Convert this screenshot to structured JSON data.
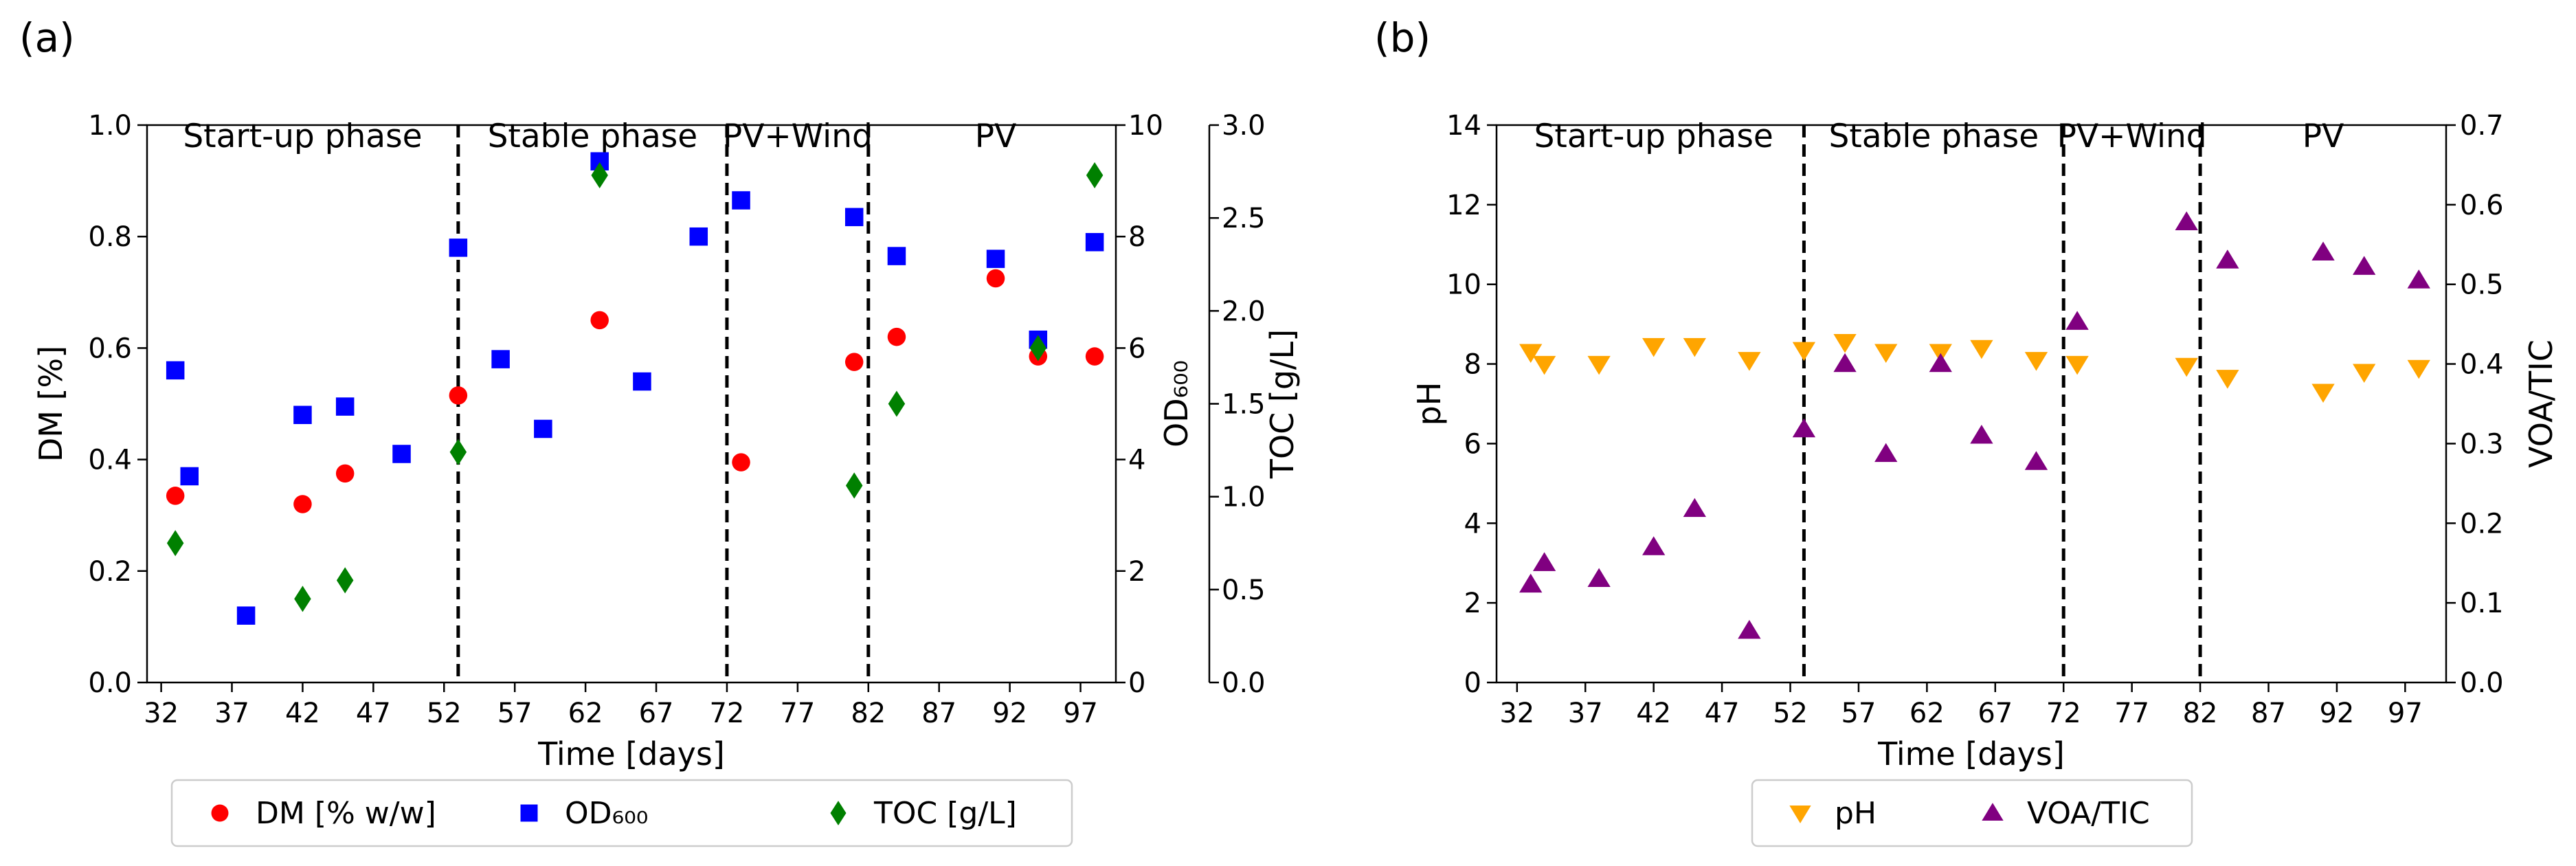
{
  "chart_data": [
    {
      "panel_label": "(a)",
      "type": "scatter",
      "xlabel": "Time [days]",
      "xlim": [
        31,
        99.5
      ],
      "xticks": [
        32,
        37,
        42,
        47,
        52,
        57,
        62,
        67,
        72,
        77,
        82,
        87,
        92,
        97
      ],
      "xtick_labels": [
        "32",
        "37",
        "42",
        "47",
        "52",
        "57",
        "62",
        "67",
        "72",
        "77",
        "82",
        "87",
        "92",
        "97"
      ],
      "phase_boundaries": [
        53,
        72,
        82
      ],
      "phases": [
        {
          "label": "Start-up phase",
          "x_center": 42
        },
        {
          "label": "Stable phase",
          "x_center": 62.5
        },
        {
          "label": "PV+Wind",
          "x_center": 77
        },
        {
          "label": "PV",
          "x_center": 91
        }
      ],
      "axes": [
        {
          "id": "dm",
          "label": "DM [%]",
          "side": "left",
          "ylim": [
            0,
            1.0
          ],
          "ticks": [
            0,
            0.2,
            0.4,
            0.6,
            0.8,
            1.0
          ],
          "tick_labels": [
            "0.0",
            "0.2",
            "0.4",
            "0.6",
            "0.8",
            "1.0"
          ]
        },
        {
          "id": "od",
          "label": "OD₆₀₀",
          "side": "right",
          "ylim": [
            0,
            10
          ],
          "ticks": [
            0,
            2,
            4,
            6,
            8,
            10
          ],
          "tick_labels": [
            "0",
            "2",
            "4",
            "6",
            "8",
            "10"
          ]
        },
        {
          "id": "toc",
          "label": "TOC [g/L]",
          "side": "right-outer",
          "ylim": [
            0,
            3.0
          ],
          "ticks": [
            0,
            0.5,
            1.0,
            1.5,
            2.0,
            2.5,
            3.0
          ],
          "tick_labels": [
            "0.0",
            "0.5",
            "1.0",
            "1.5",
            "2.0",
            "2.5",
            "3.0"
          ]
        }
      ],
      "series": [
        {
          "name": "DM [% w/w]",
          "axis": "dm",
          "marker": "circle",
          "color": "#ff0000",
          "x": [
            33,
            42,
            45,
            53,
            63,
            73,
            81,
            84,
            91,
            94,
            98
          ],
          "y": [
            0.335,
            0.32,
            0.375,
            0.515,
            0.65,
            0.395,
            0.575,
            0.62,
            0.725,
            0.585,
            0.585
          ]
        },
        {
          "name": "OD₆₀₀",
          "axis": "od",
          "marker": "square",
          "color": "#0000ff",
          "x": [
            33,
            34,
            38,
            42,
            45,
            49,
            53,
            56,
            59,
            63,
            66,
            70,
            73,
            81,
            84,
            91,
            94,
            98
          ],
          "y": [
            5.6,
            3.7,
            1.2,
            4.8,
            4.95,
            4.1,
            7.8,
            5.8,
            4.55,
            9.35,
            5.4,
            8.0,
            8.65,
            8.35,
            7.65,
            7.6,
            6.15,
            7.9
          ]
        },
        {
          "name": "TOC [g/L]",
          "axis": "toc",
          "marker": "diamond",
          "color": "#008000",
          "x": [
            33,
            42,
            45,
            53,
            63,
            81,
            84,
            94,
            98
          ],
          "y": [
            0.75,
            0.45,
            0.55,
            1.24,
            2.73,
            1.06,
            1.5,
            1.8,
            2.73
          ]
        }
      ],
      "legend": [
        {
          "label": "DM [% w/w]",
          "marker": "circle",
          "color": "#ff0000"
        },
        {
          "label": "OD₆₀₀",
          "marker": "square",
          "color": "#0000ff"
        },
        {
          "label": "TOC [g/L]",
          "marker": "diamond",
          "color": "#008000"
        }
      ],
      "legend_position": "bottom"
    },
    {
      "panel_label": "(b)",
      "type": "scatter",
      "xlabel": "Time [days]",
      "xlim": [
        30.5,
        100
      ],
      "xticks": [
        32,
        37,
        42,
        47,
        52,
        57,
        62,
        67,
        72,
        77,
        82,
        87,
        92,
        97
      ],
      "xtick_labels": [
        "32",
        "37",
        "42",
        "47",
        "52",
        "57",
        "62",
        "67",
        "72",
        "77",
        "82",
        "87",
        "92",
        "97"
      ],
      "phase_boundaries": [
        53,
        72,
        82
      ],
      "phases": [
        {
          "label": "Start-up phase",
          "x_center": 42
        },
        {
          "label": "Stable phase",
          "x_center": 62.5
        },
        {
          "label": "PV+Wind",
          "x_center": 77
        },
        {
          "label": "PV",
          "x_center": 91
        }
      ],
      "axes": [
        {
          "id": "ph",
          "label": "pH",
          "side": "left",
          "ylim": [
            0,
            14
          ],
          "ticks": [
            0,
            2,
            4,
            6,
            8,
            10,
            12,
            14
          ],
          "tick_labels": [
            "0",
            "2",
            "4",
            "6",
            "8",
            "10",
            "12",
            "14"
          ]
        },
        {
          "id": "voa",
          "label": "VOA/TIC",
          "side": "right",
          "ylim": [
            0,
            0.7
          ],
          "ticks": [
            0,
            0.1,
            0.2,
            0.3,
            0.4,
            0.5,
            0.6,
            0.7
          ],
          "tick_labels": [
            "0.0",
            "0.1",
            "0.2",
            "0.3",
            "0.4",
            "0.5",
            "0.6",
            "0.7"
          ]
        }
      ],
      "series": [
        {
          "name": "pH",
          "axis": "ph",
          "marker": "triangle-down",
          "color": "#ffa500",
          "x": [
            33,
            34,
            38,
            42,
            45,
            49,
            53,
            56,
            59,
            63,
            66,
            70,
            73,
            81,
            84,
            91,
            94,
            98
          ],
          "y": [
            8.3,
            8.0,
            8.0,
            8.45,
            8.45,
            8.1,
            8.35,
            8.55,
            8.3,
            8.3,
            8.4,
            8.1,
            8.0,
            7.95,
            7.65,
            7.3,
            7.8,
            7.9
          ]
        },
        {
          "name": "VOA/TIC",
          "axis": "voa",
          "marker": "triangle-up",
          "color": "#800080",
          "x": [
            33,
            34,
            38,
            42,
            45,
            49,
            53,
            56,
            59,
            63,
            66,
            70,
            73,
            81,
            84,
            91,
            94,
            98
          ],
          "y": [
            0.123,
            0.15,
            0.13,
            0.17,
            0.218,
            0.065,
            0.318,
            0.4,
            0.287,
            0.4,
            0.31,
            0.277,
            0.453,
            0.578,
            0.53,
            0.54,
            0.522,
            0.505
          ]
        }
      ],
      "legend": [
        {
          "label": "pH",
          "marker": "triangle-down",
          "color": "#ffa500"
        },
        {
          "label": "VOA/TIC",
          "marker": "triangle-up",
          "color": "#800080"
        }
      ],
      "legend_position": "bottom"
    }
  ]
}
